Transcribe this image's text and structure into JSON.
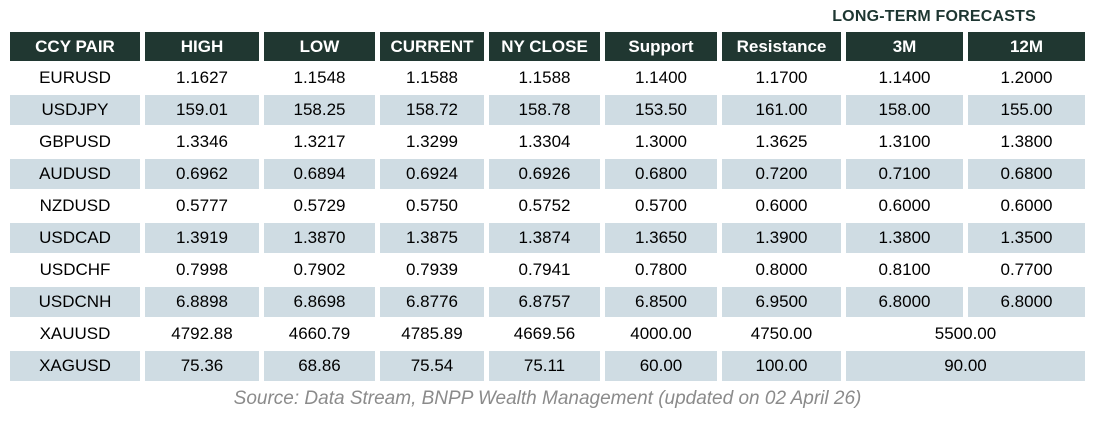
{
  "header": {
    "forecast_label": "LONG-TERM FORECASTS"
  },
  "table": {
    "columns": [
      "CCY PAIR",
      "HIGH",
      "LOW",
      "CURRENT",
      "NY CLOSE",
      "Support",
      "Resistance",
      "3M",
      "12M"
    ],
    "rows": [
      {
        "pair": "EURUSD",
        "high": "1.1627",
        "low": "1.1548",
        "current": "1.1588",
        "ny_close": "1.1588",
        "support": "1.1400",
        "resistance": "1.1700",
        "m3": "1.1400",
        "m12": "1.2000"
      },
      {
        "pair": "USDJPY",
        "high": "159.01",
        "low": "158.25",
        "current": "158.72",
        "ny_close": "158.78",
        "support": "153.50",
        "resistance": "161.00",
        "m3": "158.00",
        "m12": "155.00"
      },
      {
        "pair": "GBPUSD",
        "high": "1.3346",
        "low": "1.3217",
        "current": "1.3299",
        "ny_close": "1.3304",
        "support": "1.3000",
        "resistance": "1.3625",
        "m3": "1.3100",
        "m12": "1.3800"
      },
      {
        "pair": "AUDUSD",
        "high": "0.6962",
        "low": "0.6894",
        "current": "0.6924",
        "ny_close": "0.6926",
        "support": "0.6800",
        "resistance": "0.7200",
        "m3": "0.7100",
        "m12": "0.6800"
      },
      {
        "pair": "NZDUSD",
        "high": "0.5777",
        "low": "0.5729",
        "current": "0.5750",
        "ny_close": "0.5752",
        "support": "0.5700",
        "resistance": "0.6000",
        "m3": "0.6000",
        "m12": "0.6000"
      },
      {
        "pair": "USDCAD",
        "high": "1.3919",
        "low": "1.3870",
        "current": "1.3875",
        "ny_close": "1.3874",
        "support": "1.3650",
        "resistance": "1.3900",
        "m3": "1.3800",
        "m12": "1.3500"
      },
      {
        "pair": "USDCHF",
        "high": "0.7998",
        "low": "0.7902",
        "current": "0.7939",
        "ny_close": "0.7941",
        "support": "0.7800",
        "resistance": "0.8000",
        "m3": "0.8100",
        "m12": "0.7700"
      },
      {
        "pair": "USDCNH",
        "high": "6.8898",
        "low": "6.8698",
        "current": "6.8776",
        "ny_close": "6.8757",
        "support": "6.8500",
        "resistance": "6.9500",
        "m3": "6.8000",
        "m12": "6.8000"
      },
      {
        "pair": "XAUUSD",
        "high": "4792.88",
        "low": "4660.79",
        "current": "4785.89",
        "ny_close": "4669.56",
        "support": "4000.00",
        "resistance": "4750.00",
        "forecast_merged": "5500.00"
      },
      {
        "pair": "XAGUSD",
        "high": "75.36",
        "low": "68.86",
        "current": "75.54",
        "ny_close": "75.11",
        "support": "60.00",
        "resistance": "100.00",
        "forecast_merged": "90.00"
      }
    ]
  },
  "footer": {
    "source": "Source: Data Stream, BNPP Wealth Management (updated on 02 April 26)"
  },
  "colors": {
    "header_bg": "#203731",
    "row_alt_bg": "#cfdce3",
    "forecast_label_color": "#1d3631",
    "source_color": "#8b8b8b"
  }
}
